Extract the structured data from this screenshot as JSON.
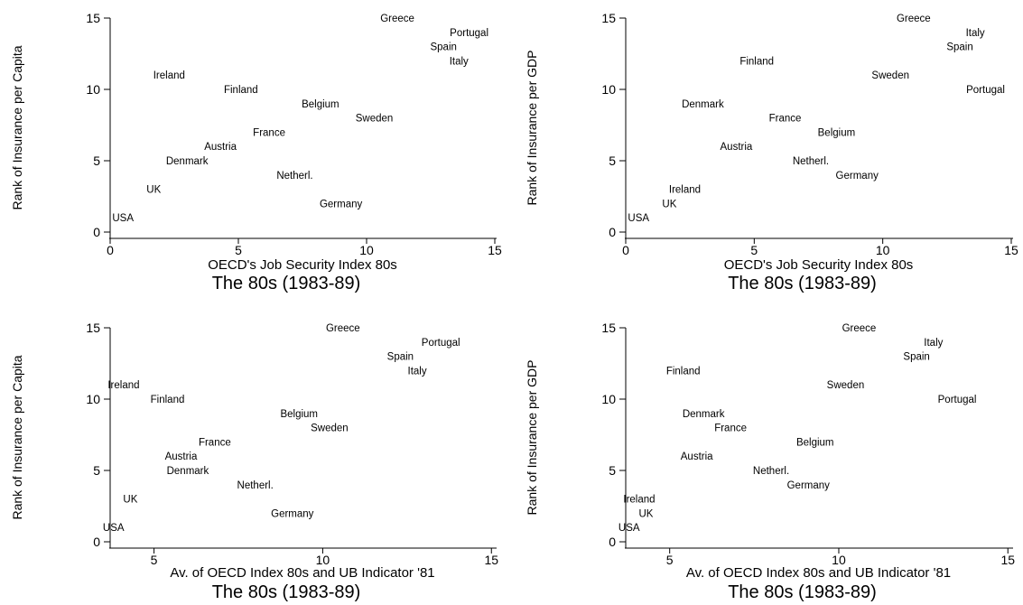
{
  "chart_data": [
    {
      "type": "scatter",
      "title": "The 80s (1983-89)",
      "xlabel": "OECD's Job Security Index 80s",
      "ylabel": "Rank of Insurance per Capita",
      "xlim": [
        0,
        15
      ],
      "ylim": [
        0,
        15
      ],
      "xticks": [
        "0",
        "5",
        "10",
        "15"
      ],
      "yticks": [
        "0",
        "5",
        "10",
        "15"
      ],
      "points": [
        {
          "label": "Greece",
          "x": 11.2,
          "y": 15
        },
        {
          "label": "Portugal",
          "x": 14,
          "y": 14
        },
        {
          "label": "Spain",
          "x": 13,
          "y": 13
        },
        {
          "label": "Italy",
          "x": 13.6,
          "y": 12
        },
        {
          "label": "Ireland",
          "x": 2.3,
          "y": 11
        },
        {
          "label": "Finland",
          "x": 5.1,
          "y": 10
        },
        {
          "label": "Belgium",
          "x": 8.2,
          "y": 9
        },
        {
          "label": "Sweden",
          "x": 10.3,
          "y": 8
        },
        {
          "label": "France",
          "x": 6.2,
          "y": 7
        },
        {
          "label": "Austria",
          "x": 4.3,
          "y": 6
        },
        {
          "label": "Denmark",
          "x": 3.0,
          "y": 5
        },
        {
          "label": "Netherl.",
          "x": 7.2,
          "y": 4
        },
        {
          "label": "UK",
          "x": 1.7,
          "y": 3
        },
        {
          "label": "Germany",
          "x": 9.0,
          "y": 2
        },
        {
          "label": "USA",
          "x": 0.5,
          "y": 1
        }
      ]
    },
    {
      "type": "scatter",
      "title": "The 80s (1983-89)",
      "xlabel": "OECD's Job Security Index 80s",
      "ylabel": "Rank of Insurance per GDP",
      "xlim": [
        0,
        15
      ],
      "ylim": [
        0,
        15
      ],
      "xticks": [
        "0",
        "5",
        "10",
        "15"
      ],
      "yticks": [
        "0",
        "5",
        "10",
        "15"
      ],
      "points": [
        {
          "label": "Greece",
          "x": 11.2,
          "y": 15
        },
        {
          "label": "Italy",
          "x": 13.6,
          "y": 14
        },
        {
          "label": "Spain",
          "x": 13,
          "y": 13
        },
        {
          "label": "Finland",
          "x": 5.1,
          "y": 12
        },
        {
          "label": "Sweden",
          "x": 10.3,
          "y": 11
        },
        {
          "label": "Portugal",
          "x": 14,
          "y": 10
        },
        {
          "label": "Denmark",
          "x": 3.0,
          "y": 9
        },
        {
          "label": "France",
          "x": 6.2,
          "y": 8
        },
        {
          "label": "Belgium",
          "x": 8.2,
          "y": 7
        },
        {
          "label": "Austria",
          "x": 4.3,
          "y": 6
        },
        {
          "label": "Netherl.",
          "x": 7.2,
          "y": 5
        },
        {
          "label": "Germany",
          "x": 9.0,
          "y": 4
        },
        {
          "label": "Ireland",
          "x": 2.3,
          "y": 3
        },
        {
          "label": "UK",
          "x": 1.7,
          "y": 2
        },
        {
          "label": "USA",
          "x": 0.5,
          "y": 1
        }
      ]
    },
    {
      "type": "scatter",
      "title": "The 80s (1983-89)",
      "xlabel": "Av. of OECD Index 80s and UB Indicator '81",
      "ylabel": "Rank of Insurance per Capita",
      "xlim": [
        3.7,
        15.1
      ],
      "ylim": [
        0,
        15
      ],
      "xticks": [
        "5",
        "10",
        "15"
      ],
      "yticks": [
        "0",
        "5",
        "10",
        "15"
      ],
      "points": [
        {
          "label": "Greece",
          "x": 10.6,
          "y": 15
        },
        {
          "label": "Portugal",
          "x": 13.5,
          "y": 14
        },
        {
          "label": "Spain",
          "x": 12.3,
          "y": 13
        },
        {
          "label": "Italy",
          "x": 12.8,
          "y": 12
        },
        {
          "label": "Ireland",
          "x": 4.1,
          "y": 11
        },
        {
          "label": "Finland",
          "x": 5.4,
          "y": 10
        },
        {
          "label": "Belgium",
          "x": 9.3,
          "y": 9
        },
        {
          "label": "Sweden",
          "x": 10.2,
          "y": 8
        },
        {
          "label": "France",
          "x": 6.8,
          "y": 7
        },
        {
          "label": "Austria",
          "x": 5.8,
          "y": 6
        },
        {
          "label": "Denmark",
          "x": 6.0,
          "y": 5
        },
        {
          "label": "Netherl.",
          "x": 8.0,
          "y": 4
        },
        {
          "label": "UK",
          "x": 4.3,
          "y": 3
        },
        {
          "label": "Germany",
          "x": 9.1,
          "y": 2
        },
        {
          "label": "USA",
          "x": 3.8,
          "y": 1
        }
      ]
    },
    {
      "type": "scatter",
      "title": "The 80s (1983-89)",
      "xlabel": "Av. of OECD Index 80s and UB Indicator '81",
      "ylabel": "Rank of Insurance per GDP",
      "xlim": [
        3.7,
        15.1
      ],
      "ylim": [
        0,
        15
      ],
      "xticks": [
        "5",
        "10",
        "15"
      ],
      "yticks": [
        "0",
        "5",
        "10",
        "15"
      ],
      "points": [
        {
          "label": "Greece",
          "x": 10.6,
          "y": 15
        },
        {
          "label": "Italy",
          "x": 12.8,
          "y": 14
        },
        {
          "label": "Spain",
          "x": 12.3,
          "y": 13
        },
        {
          "label": "Finland",
          "x": 5.4,
          "y": 12
        },
        {
          "label": "Sweden",
          "x": 10.2,
          "y": 11
        },
        {
          "label": "Portugal",
          "x": 13.5,
          "y": 10
        },
        {
          "label": "Denmark",
          "x": 6.0,
          "y": 9
        },
        {
          "label": "France",
          "x": 6.8,
          "y": 8
        },
        {
          "label": "Belgium",
          "x": 9.3,
          "y": 7
        },
        {
          "label": "Austria",
          "x": 5.8,
          "y": 6
        },
        {
          "label": "Netherl.",
          "x": 8.0,
          "y": 5
        },
        {
          "label": "Germany",
          "x": 9.1,
          "y": 4
        },
        {
          "label": "Ireland",
          "x": 4.1,
          "y": 3
        },
        {
          "label": "UK",
          "x": 4.3,
          "y": 2
        },
        {
          "label": "USA",
          "x": 3.8,
          "y": 1
        }
      ]
    }
  ]
}
